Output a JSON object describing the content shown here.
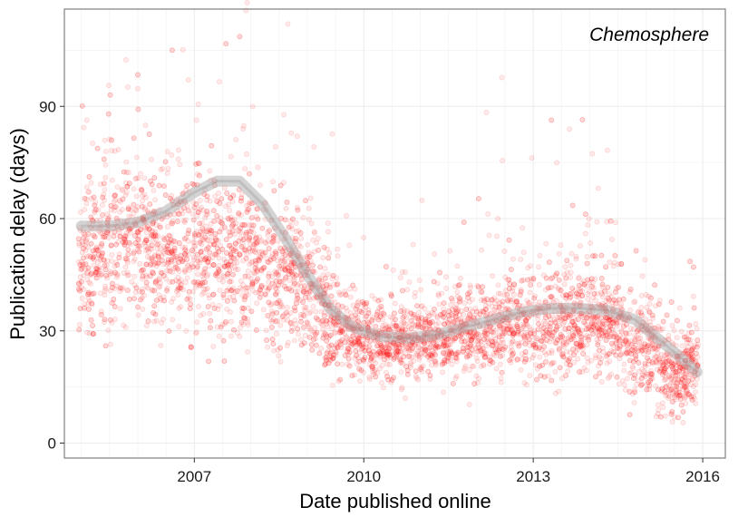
{
  "chart_data": {
    "type": "scatter",
    "title": "",
    "annotation": "Chemosphere",
    "xlabel": "Date published online",
    "ylabel": "Publication delay (days)",
    "x_unit": "year",
    "xlim": [
      2004.7,
      2016.4
    ],
    "ylim": [
      -4,
      116
    ],
    "x_ticks": [
      2007,
      2010,
      2013,
      2016
    ],
    "x_tick_labels": [
      "2007",
      "2010",
      "2013",
      "2016"
    ],
    "y_ticks": [
      0,
      30,
      60,
      90
    ],
    "y_tick_labels": [
      "0",
      "30",
      "60",
      "90"
    ],
    "grid": true,
    "legend": "none",
    "series": [
      {
        "kind": "points",
        "color": "#ff0000",
        "opacity": 0.1,
        "density_profile": [
          {
            "x": 2005.0,
            "center": 48,
            "spread": 9
          },
          {
            "x": 2005.5,
            "center": 52,
            "spread": 10
          },
          {
            "x": 2006.0,
            "center": 55,
            "spread": 11
          },
          {
            "x": 2006.5,
            "center": 50,
            "spread": 9
          },
          {
            "x": 2007.0,
            "center": 53,
            "spread": 11
          },
          {
            "x": 2007.5,
            "center": 50,
            "spread": 10
          },
          {
            "x": 2008.0,
            "center": 48,
            "spread": 10
          },
          {
            "x": 2008.5,
            "center": 45,
            "spread": 9
          },
          {
            "x": 2009.0,
            "center": 42,
            "spread": 9
          },
          {
            "x": 2009.5,
            "center": 31,
            "spread": 6
          },
          {
            "x": 2010.0,
            "center": 27,
            "spread": 5
          },
          {
            "x": 2010.5,
            "center": 27,
            "spread": 5
          },
          {
            "x": 2011.0,
            "center": 27,
            "spread": 5
          },
          {
            "x": 2011.5,
            "center": 28,
            "spread": 5
          },
          {
            "x": 2012.0,
            "center": 30,
            "spread": 6
          },
          {
            "x": 2012.5,
            "center": 31,
            "spread": 6
          },
          {
            "x": 2013.0,
            "center": 32,
            "spread": 7
          },
          {
            "x": 2013.5,
            "center": 32,
            "spread": 7
          },
          {
            "x": 2014.0,
            "center": 32,
            "spread": 7
          },
          {
            "x": 2014.5,
            "center": 30,
            "spread": 7
          },
          {
            "x": 2015.0,
            "center": 25,
            "spread": 6
          },
          {
            "x": 2015.5,
            "center": 17,
            "spread": 6
          },
          {
            "x": 2015.9,
            "center": 20,
            "spread": 5
          }
        ]
      },
      {
        "kind": "smooth",
        "color": "#aaaaaa",
        "points": [
          {
            "x": 2005.0,
            "y": 58
          },
          {
            "x": 2005.5,
            "y": 58
          },
          {
            "x": 2006.0,
            "y": 59
          },
          {
            "x": 2006.5,
            "y": 62
          },
          {
            "x": 2007.0,
            "y": 67
          },
          {
            "x": 2007.4,
            "y": 70
          },
          {
            "x": 2007.8,
            "y": 70
          },
          {
            "x": 2008.2,
            "y": 64
          },
          {
            "x": 2008.6,
            "y": 55
          },
          {
            "x": 2009.0,
            "y": 45
          },
          {
            "x": 2009.4,
            "y": 36
          },
          {
            "x": 2009.8,
            "y": 31
          },
          {
            "x": 2010.3,
            "y": 28.5
          },
          {
            "x": 2010.8,
            "y": 28
          },
          {
            "x": 2011.3,
            "y": 29
          },
          {
            "x": 2011.8,
            "y": 31
          },
          {
            "x": 2012.3,
            "y": 33
          },
          {
            "x": 2012.8,
            "y": 35
          },
          {
            "x": 2013.3,
            "y": 36
          },
          {
            "x": 2013.8,
            "y": 36
          },
          {
            "x": 2014.3,
            "y": 35.5
          },
          {
            "x": 2014.8,
            "y": 33
          },
          {
            "x": 2015.2,
            "y": 28
          },
          {
            "x": 2015.6,
            "y": 23
          },
          {
            "x": 2015.9,
            "y": 19
          }
        ]
      }
    ]
  }
}
